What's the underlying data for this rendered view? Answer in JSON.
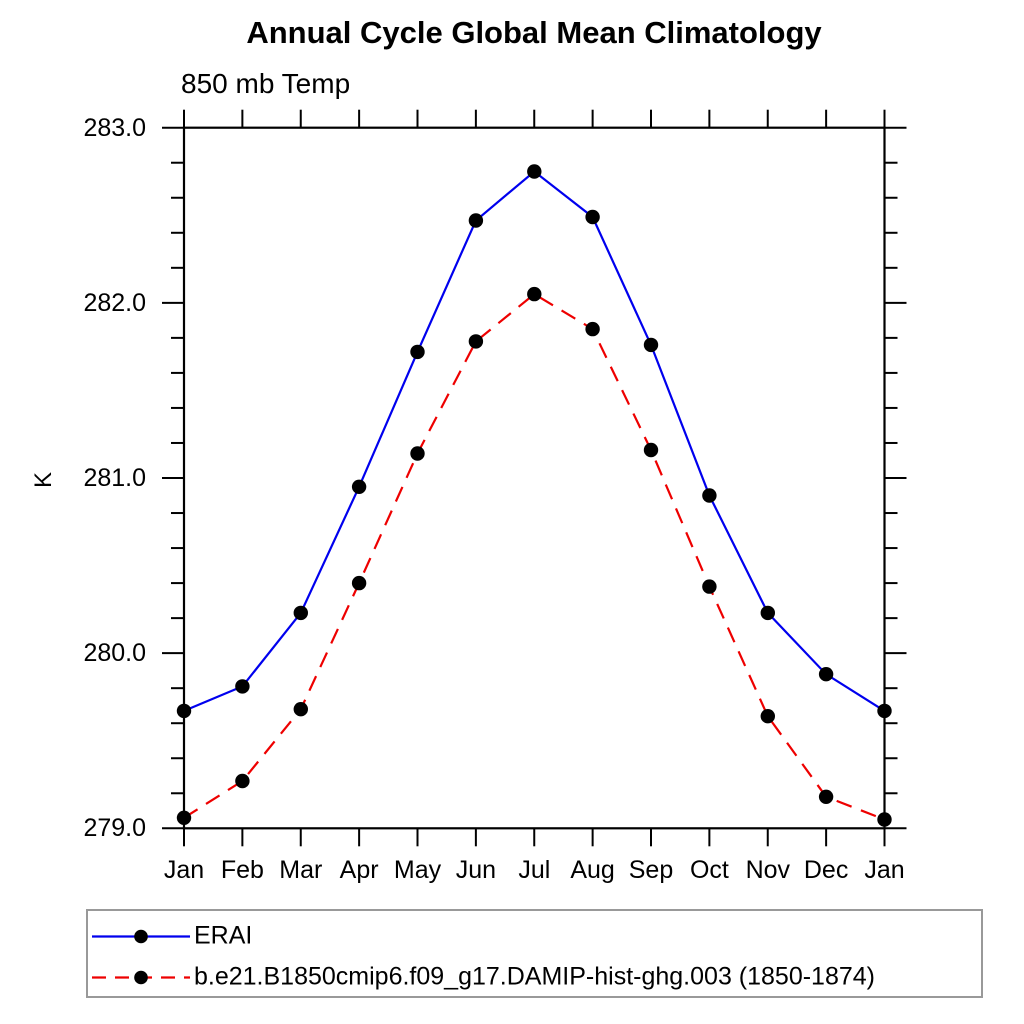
{
  "title": "Annual Cycle Global Mean Climatology",
  "subtitle": "850 mb Temp",
  "chart_data": {
    "type": "line",
    "title": "Annual Cycle Global Mean Climatology",
    "subtitle": "850 mb Temp",
    "xlabel": "",
    "ylabel": "K",
    "categories": [
      "Jan",
      "Feb",
      "Mar",
      "Apr",
      "May",
      "Jun",
      "Jul",
      "Aug",
      "Sep",
      "Oct",
      "Nov",
      "Dec",
      "Jan"
    ],
    "ylim": [
      279.0,
      283.0
    ],
    "y_major_ticks": [
      279.0,
      280.0,
      281.0,
      282.0,
      283.0
    ],
    "y_tick_labels": [
      "279.0",
      "280.0",
      "281.0",
      "282.0",
      "283.0"
    ],
    "y_minor_step": 0.2,
    "grid": false,
    "legend_position": "bottom",
    "axis_color": "#000000",
    "legend_border_color": "#999999",
    "series": [
      {
        "name": "ERAI",
        "color": "#0000ee",
        "style": "solid",
        "marker": "circle",
        "marker_color": "#000000",
        "values": [
          279.67,
          279.81,
          280.23,
          280.95,
          281.72,
          282.47,
          282.75,
          282.49,
          281.76,
          280.9,
          280.23,
          279.88,
          279.67
        ]
      },
      {
        "name": "b.e21.B1850cmip6.f09_g17.DAMIP-hist-ghg.003 (1850-1874)",
        "color": "#ee0000",
        "style": "dashed",
        "marker": "circle",
        "marker_color": "#000000",
        "values": [
          279.06,
          279.27,
          279.68,
          280.4,
          281.14,
          281.78,
          282.05,
          281.85,
          281.16,
          280.38,
          279.64,
          279.18,
          279.05
        ]
      }
    ]
  }
}
